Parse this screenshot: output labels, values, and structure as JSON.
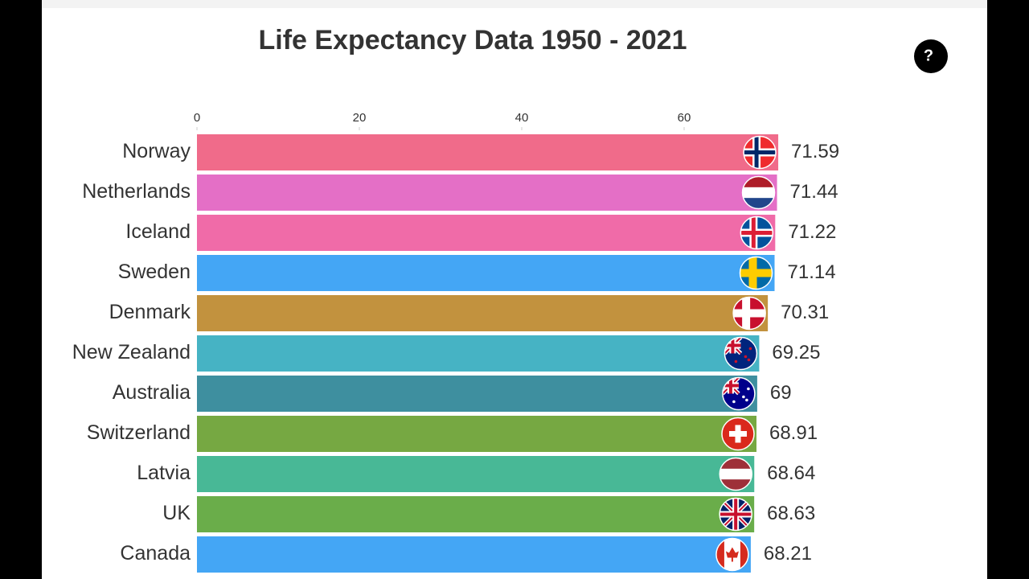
{
  "chart_data": {
    "type": "barh",
    "title": "Life Expectancy Data 1950 - 2021",
    "categories": [
      "Norway",
      "Netherlands",
      "Iceland",
      "Sweden",
      "Denmark",
      "New Zealand",
      "Australia",
      "Switzerland",
      "Latvia",
      "UK",
      "Canada"
    ],
    "values": [
      71.59,
      71.44,
      71.22,
      71.14,
      70.31,
      69.25,
      69,
      68.91,
      68.64,
      68.63,
      68.21
    ],
    "colors": [
      "#f06b8a",
      "#e46fc6",
      "#f06ba8",
      "#44a6f5",
      "#c2923e",
      "#46b3c4",
      "#3e8f9f",
      "#76a842",
      "#48b896",
      "#6aad4a",
      "#44a6f5"
    ],
    "xlim": [
      0,
      80
    ],
    "xticks": [
      0,
      20,
      40,
      60
    ]
  },
  "logo": "?"
}
